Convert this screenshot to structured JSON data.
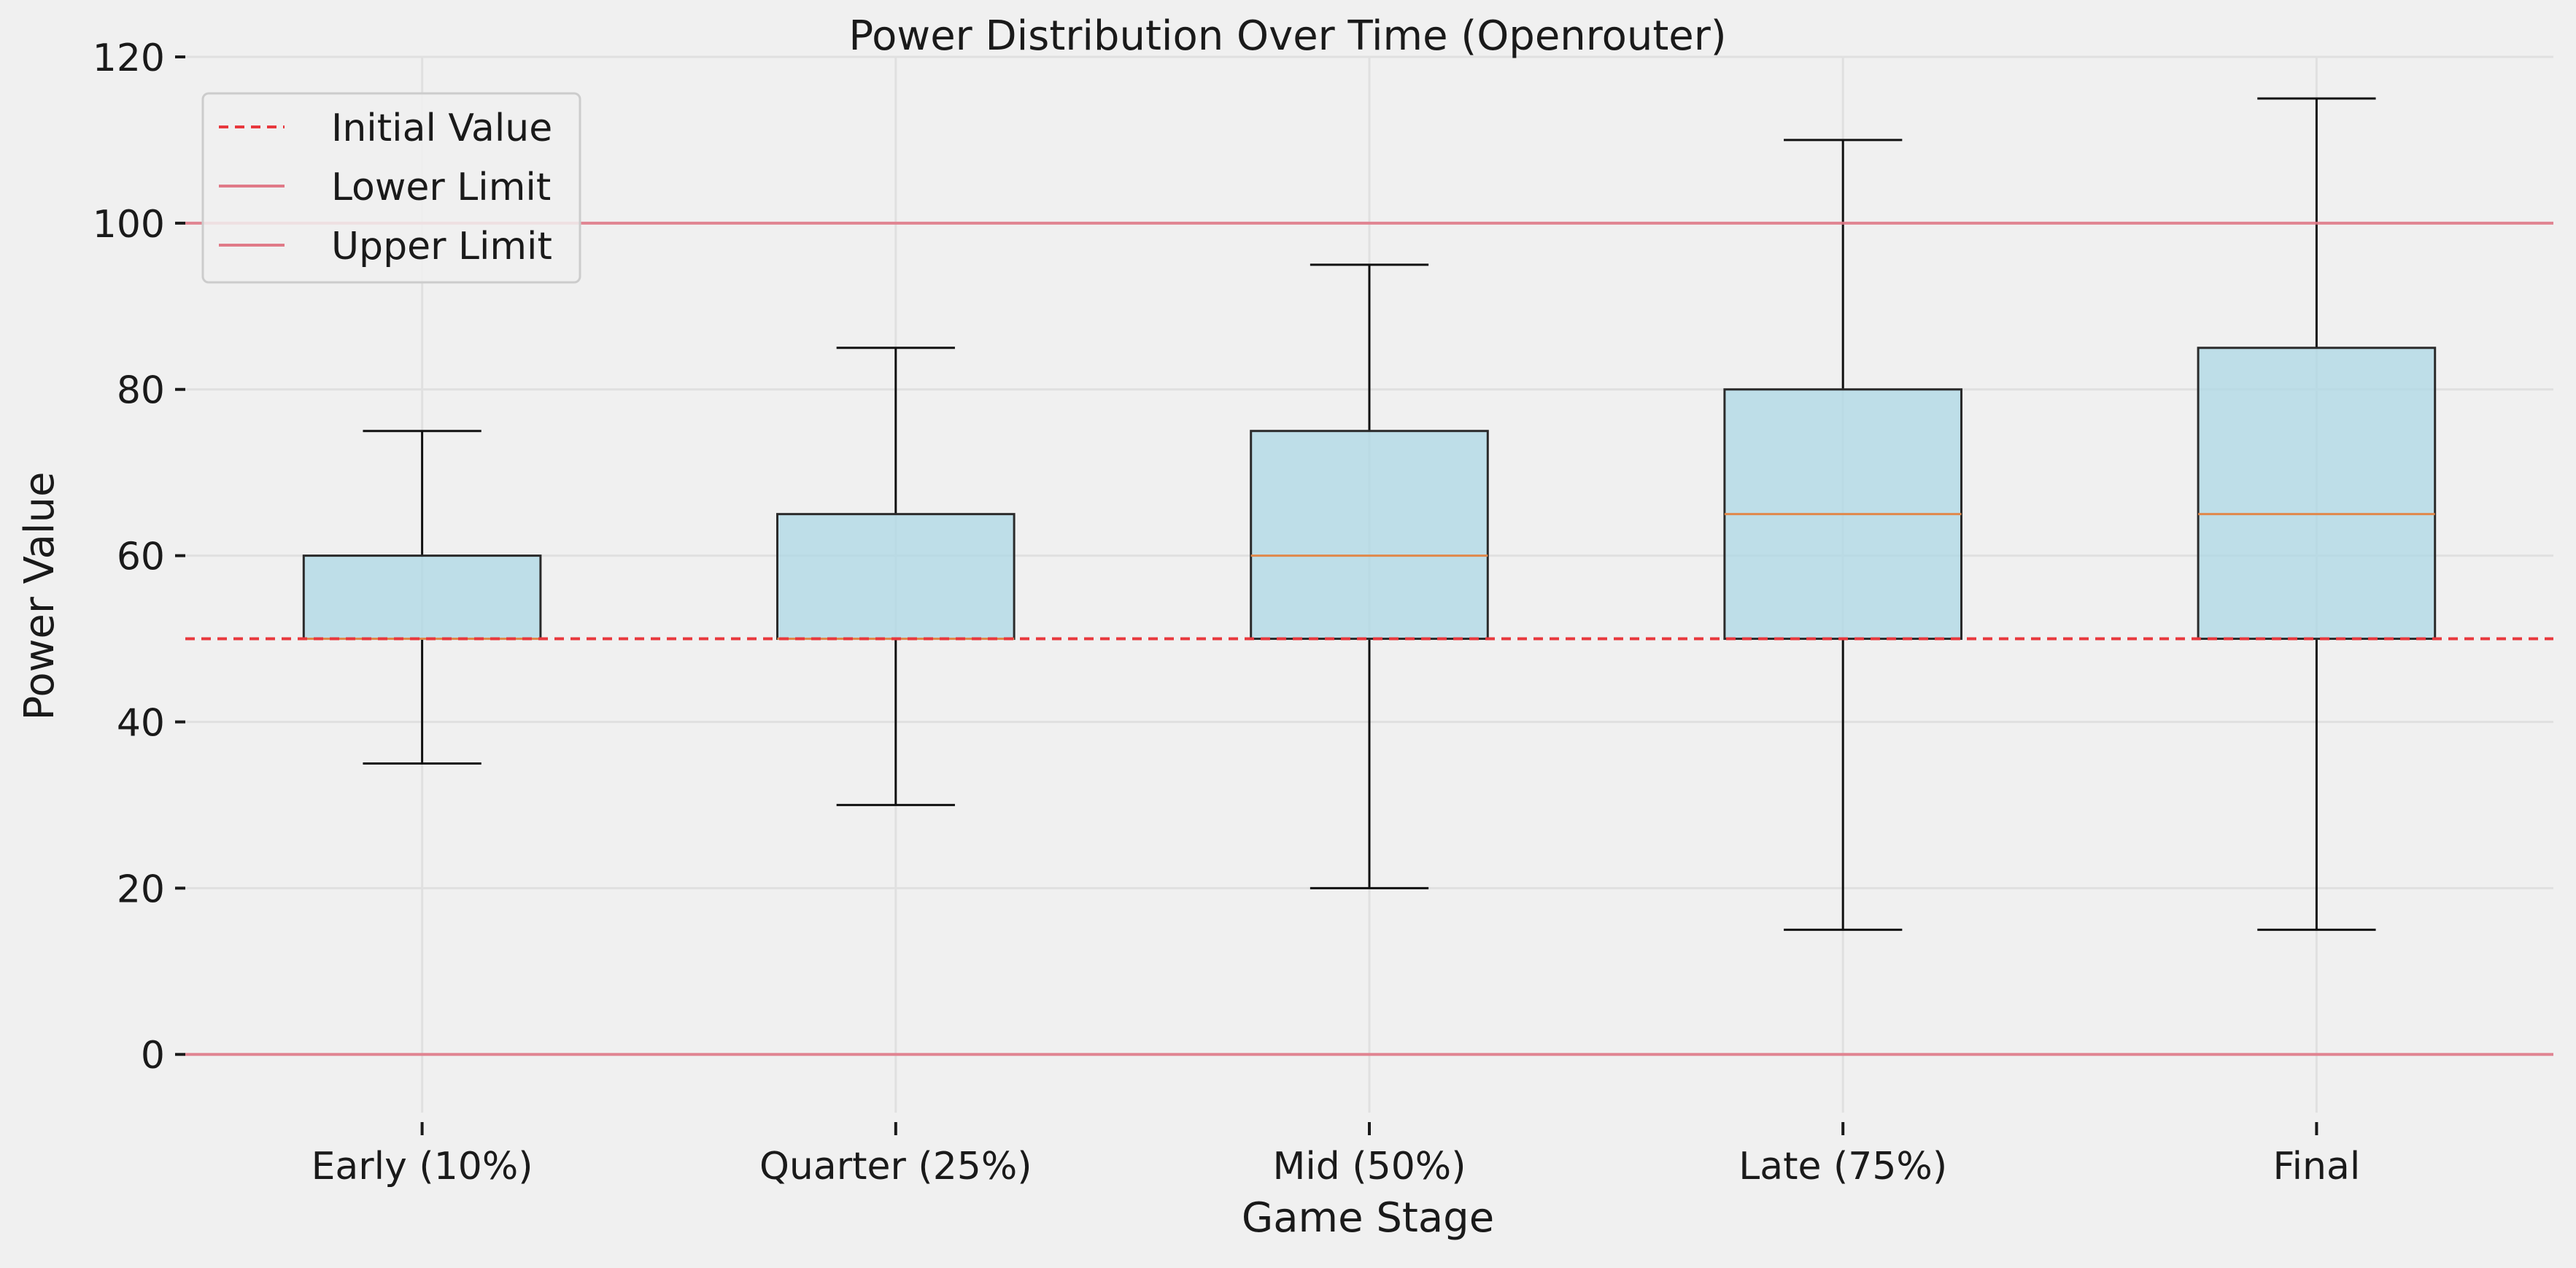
{
  "chart_data": {
    "type": "box",
    "title": "Power Distribution Over Time (Openrouter)",
    "xlabel": "Game Stage",
    "ylabel": "Power Value",
    "ylim": [
      -7,
      120
    ],
    "yticks": [
      0,
      20,
      40,
      60,
      80,
      100,
      120
    ],
    "categories": [
      "Early (10%)",
      "Quarter (25%)",
      "Mid (50%)",
      "Late (75%)",
      "Final"
    ],
    "boxes": [
      {
        "whisker_low": 35,
        "q1": 50,
        "median": 50,
        "q3": 60,
        "whisker_high": 75
      },
      {
        "whisker_low": 30,
        "q1": 50,
        "median": 50,
        "q3": 65,
        "whisker_high": 85
      },
      {
        "whisker_low": 20,
        "q1": 50,
        "median": 60,
        "q3": 75,
        "whisker_high": 95
      },
      {
        "whisker_low": 15,
        "q1": 50,
        "median": 65,
        "q3": 80,
        "whisker_high": 110
      },
      {
        "whisker_low": 15,
        "q1": 50,
        "median": 65,
        "q3": 85,
        "whisker_high": 115
      }
    ],
    "reference_lines": [
      {
        "name": "Initial Value",
        "value": 50,
        "style": "dashed",
        "color": "#e8383d"
      },
      {
        "name": "Lower Limit",
        "value": 0,
        "style": "solid",
        "color": "#e07a88"
      },
      {
        "name": "Upper Limit",
        "value": 100,
        "style": "solid",
        "color": "#e07a88"
      }
    ],
    "legend_position": "top-left",
    "grid": true,
    "colors": {
      "background": "#f0f0f0",
      "box_fill": "#add8e6",
      "box_edge": "#2a2a2a",
      "median": "#e0884a",
      "grid": "#e0e0e0"
    }
  }
}
